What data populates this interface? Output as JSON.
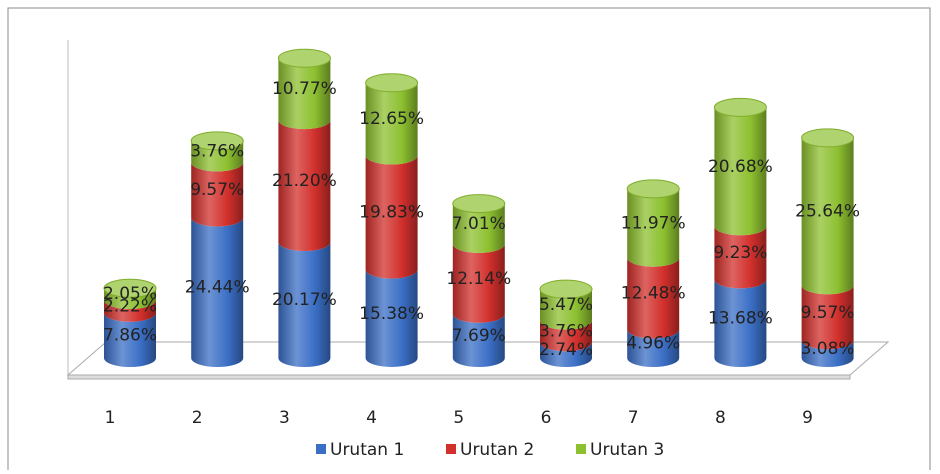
{
  "chart_data": {
    "type": "bar3d-stacked",
    "categories": [
      "1",
      "2",
      "3",
      "4",
      "5",
      "6",
      "7",
      "8",
      "9"
    ],
    "series": [
      {
        "name": "Urutan 1",
        "color": "#3b6fc6",
        "values": [
          7.86,
          24.44,
          20.17,
          15.38,
          7.69,
          2.74,
          4.96,
          13.68,
          3.08
        ],
        "value_labels": [
          "7.86%",
          "24.44%",
          "20.17%",
          "15.38%",
          "7.69%",
          "2.74%",
          "4.96%",
          "13.68%",
          "3.08%"
        ]
      },
      {
        "name": "Urutan 2",
        "color": "#d2302c",
        "values": [
          2.22,
          9.57,
          21.2,
          19.83,
          12.14,
          3.76,
          12.48,
          9.23,
          9.57
        ],
        "value_labels": [
          "2.22%",
          "9.57%",
          "21.20%",
          "19.83%",
          "12.14%",
          "3.76%",
          "12.48%",
          "9.23%",
          "9.57%"
        ]
      },
      {
        "name": "Urutan 3",
        "color": "#8dc030",
        "values": [
          2.05,
          3.76,
          10.77,
          12.65,
          7.01,
          5.47,
          11.97,
          20.68,
          25.64
        ],
        "value_labels": [
          "2.05%",
          "3.76%",
          "10.77%",
          "12.65%",
          "7.01%",
          "5.47%",
          "11.97%",
          "20.68%",
          "25.64%"
        ]
      }
    ],
    "legend": "bottom"
  }
}
